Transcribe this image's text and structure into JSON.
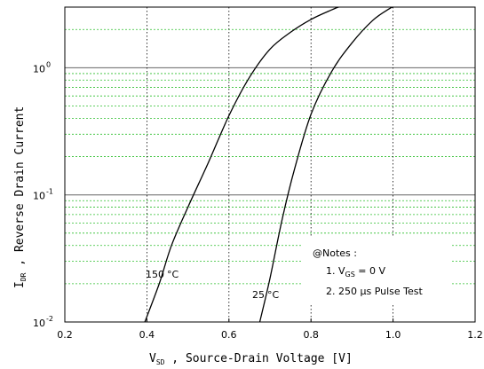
{
  "chart_data": {
    "type": "line",
    "xscale": "linear",
    "yscale": "log",
    "xlim": [
      0.2,
      1.2
    ],
    "ylim": [
      0.01,
      3
    ],
    "x_ticks": [
      0.2,
      0.4,
      0.6,
      0.8,
      1.0,
      1.2
    ],
    "x_tick_labels": [
      "0.2",
      "0.4",
      "0.6",
      "0.8",
      "1.0",
      "1.2"
    ],
    "y_ticks": [
      0.01,
      0.1,
      1
    ],
    "y_tick_bases": [
      "10",
      "10",
      "10"
    ],
    "y_tick_exponents": [
      "-2",
      "-1",
      "0"
    ],
    "xlabel": {
      "main": "V",
      "sub": "SD",
      "rest": " , Source-Drain Voltage  [V]"
    },
    "ylabel": {
      "main": "I",
      "sub": "DR",
      "rest": " , Reverse Drain Current"
    },
    "series": [
      {
        "label_value": "150",
        "label_unit": "°C",
        "x": [
          0.395,
          0.43,
          0.46,
          0.5,
          0.55,
          0.6,
          0.65,
          0.7,
          0.75,
          0.8,
          0.85,
          0.867
        ],
        "y": [
          0.01,
          0.02,
          0.04,
          0.08,
          0.18,
          0.42,
          0.84,
          1.4,
          1.9,
          2.4,
          2.85,
          3.0
        ],
        "label_at": [
          0.175,
          0.155
        ]
      },
      {
        "label_value": "25",
        "label_unit": "°C",
        "x": [
          0.675,
          0.7,
          0.73,
          0.76,
          0.8,
          0.85,
          0.9,
          0.95,
          0.99,
          1.0
        ],
        "y": [
          0.01,
          0.022,
          0.065,
          0.16,
          0.43,
          0.93,
          1.57,
          2.35,
          2.9,
          3.0
        ]
      }
    ],
    "notes": {
      "title": "@Notes :",
      "line1_pre": "1. V",
      "line1_sub": "GS",
      "line1_post": " = 0 V",
      "line2": "2. 250 μs Pulse Test"
    },
    "grid": {
      "major_color": "#666666",
      "minor_color": "#2fbf2f",
      "vertical_color": "#000000"
    }
  }
}
